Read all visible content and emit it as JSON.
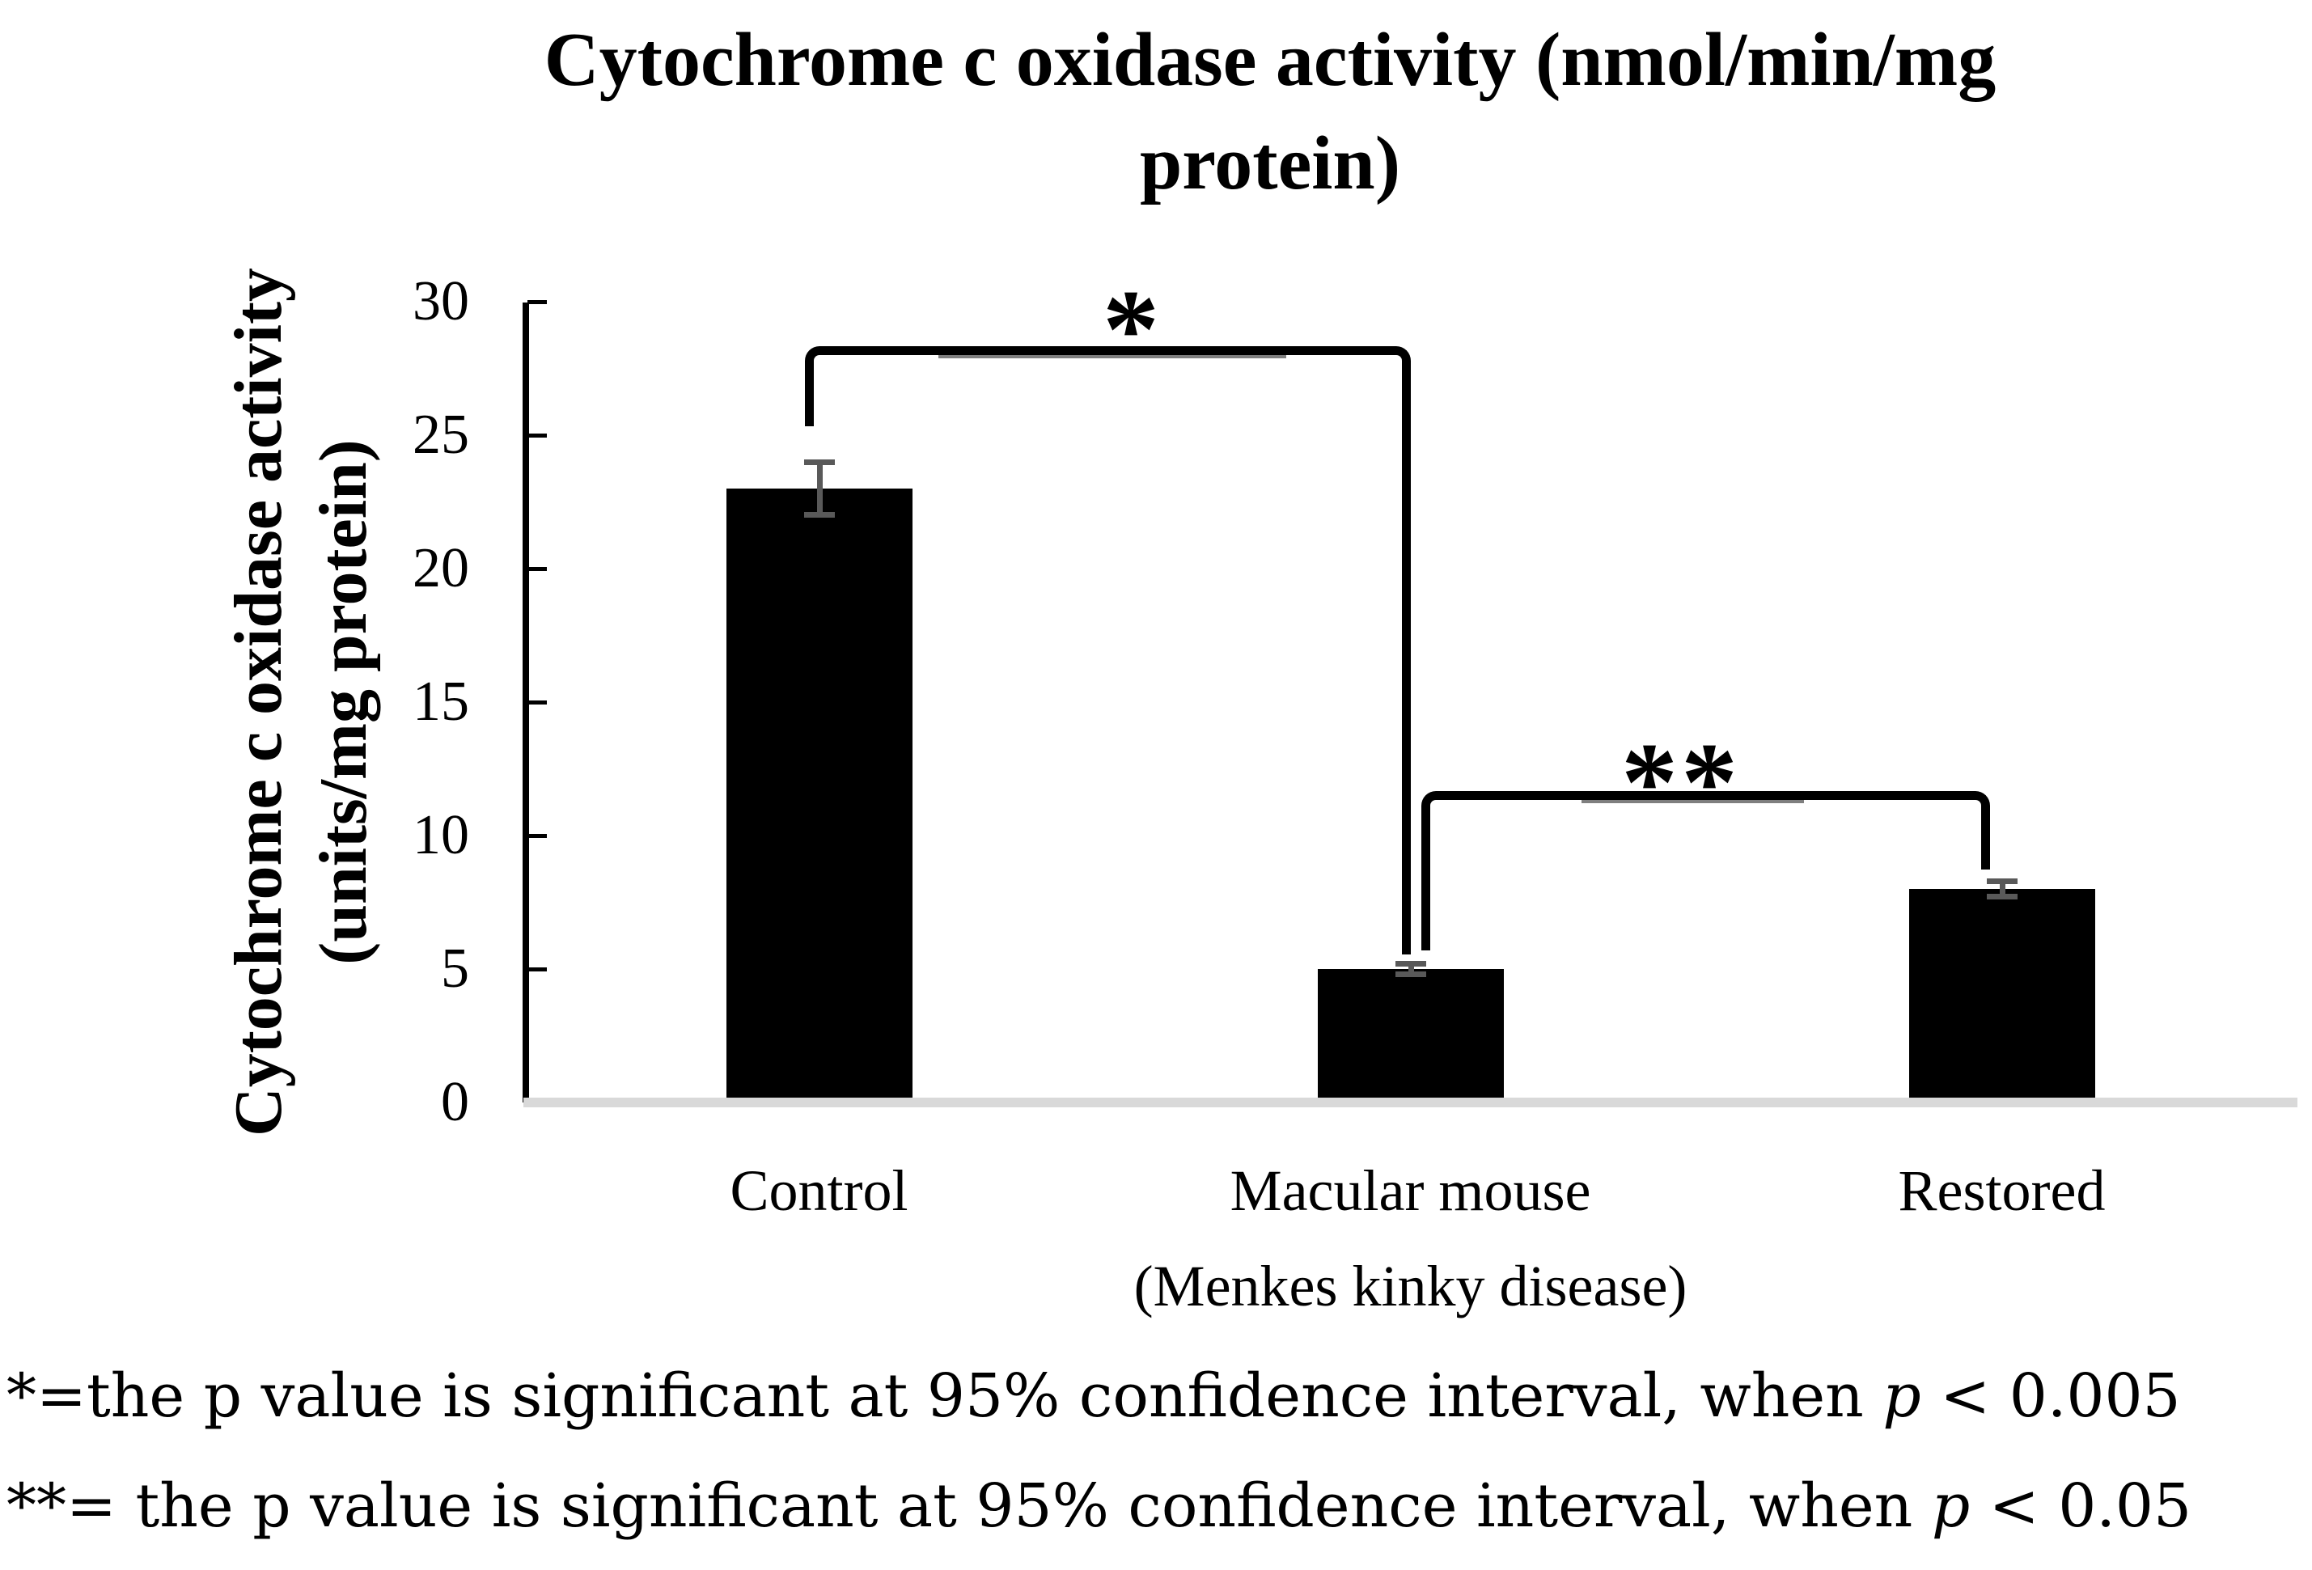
{
  "title": {
    "full": "Cytochrome c oxidase activity (nmol/min/mg protein)",
    "line1": "Cytochrome c oxidase activity (nmol/min/mg",
    "line2": "protein)"
  },
  "y_axis": {
    "label_line1": "Cytochrome c oxidase activity",
    "label_line2": "(units/mg protein)",
    "tick_labels": [
      "0",
      "5",
      "10",
      "15",
      "20",
      "25",
      "30"
    ]
  },
  "chart_data": {
    "type": "bar",
    "title": "Cytochrome c oxidase activity (nmol/min/mg protein)",
    "ylabel": "Cytochrome c oxidase activity (units/mg protein)",
    "xlabel": "",
    "ylim": [
      0,
      30
    ],
    "y_tick_step": 5,
    "grid": false,
    "bar_color": "#000000",
    "error_bar_color": "#595959",
    "categories": [
      {
        "lines": [
          "Control"
        ]
      },
      {
        "lines": [
          "Macular mouse",
          "(Menkes kinky disease)"
        ]
      },
      {
        "lines": [
          "Restored"
        ]
      }
    ],
    "series": [
      {
        "name": "Cytochrome c oxidase activity",
        "values": [
          23,
          5,
          8
        ],
        "errors": [
          1.1,
          0.3,
          0.4
        ]
      }
    ],
    "significance_brackets": [
      {
        "label": "*",
        "between": [
          "Control",
          "Macular mouse (Menkes kinky disease)"
        ],
        "meaning": "p < 0.005"
      },
      {
        "label": "**",
        "between": [
          "Macular mouse (Menkes kinky disease)",
          "Restored"
        ],
        "meaning": "p < 0.05"
      }
    ]
  },
  "significance": {
    "sig1_label": "*",
    "sig2_label": "**"
  },
  "footnotes": [
    {
      "pre": "*=the p value is significant at 95% confidence interval, when ",
      "p": "p",
      "post": " < 0.005"
    },
    {
      "pre": "**= the p value is significant at 95% confidence interval, when ",
      "p": "p",
      "post": " < 0.05"
    }
  ]
}
